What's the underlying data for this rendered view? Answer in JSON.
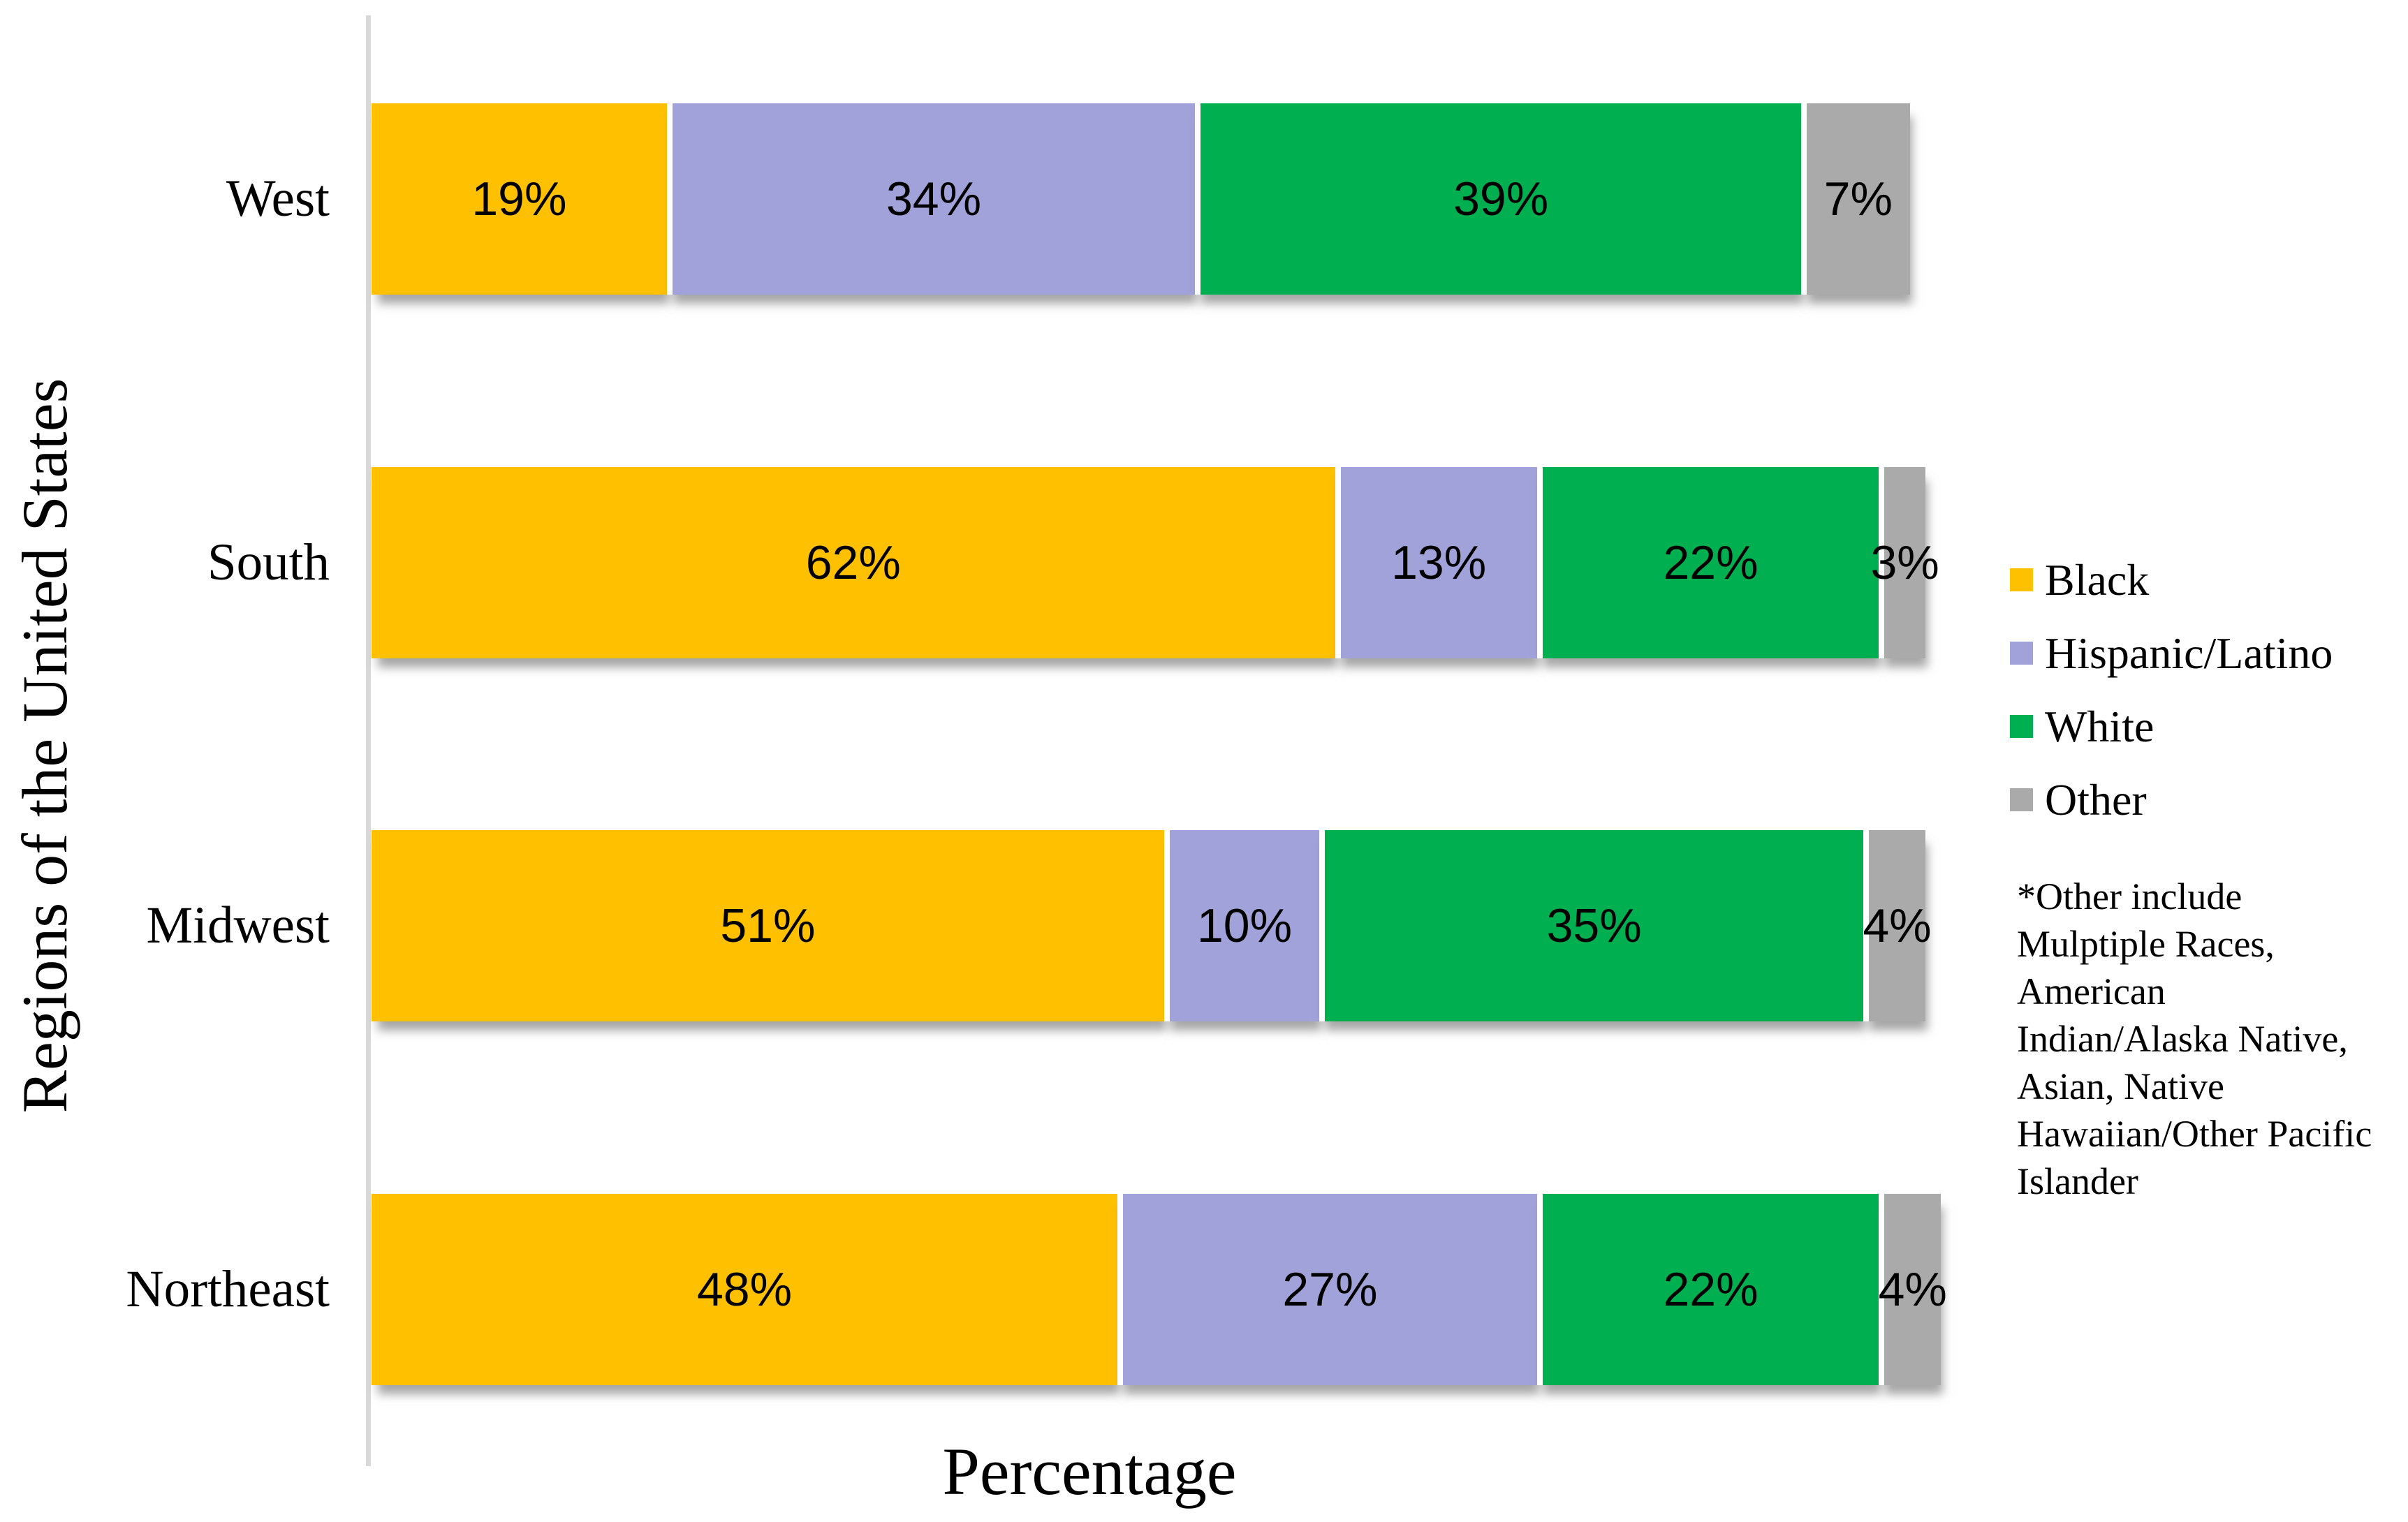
{
  "chart_data": {
    "type": "bar",
    "subtype": "stacked-100",
    "orientation": "horizontal",
    "title": "",
    "xlabel": "Percentage",
    "ylabel": "Regions of the United States",
    "value_suffix": "%",
    "grid": false,
    "legend_position": "right",
    "categories": [
      "West",
      "South",
      "Midwest",
      "Northeast"
    ],
    "series": [
      {
        "name": "Black",
        "color": "#FFC000",
        "values": [
          19,
          62,
          51,
          48
        ]
      },
      {
        "name": "Hispanic/Latino",
        "color": "#A2A2DB",
        "values": [
          34,
          13,
          10,
          27
        ]
      },
      {
        "name": "White",
        "color": "#00B050",
        "values": [
          39,
          22,
          35,
          22
        ]
      },
      {
        "name": "Other",
        "color": "#AAAAAA",
        "values": [
          7,
          3,
          4,
          4
        ]
      }
    ],
    "axis_color": "#D9D9D9",
    "footnote_lines": [
      "*Other include",
      "Mulptiple Races,",
      "American",
      "Indian/Alaska Native,",
      "Asian, Native",
      "Hawaiian/Other Pacific",
      "Islander"
    ]
  }
}
